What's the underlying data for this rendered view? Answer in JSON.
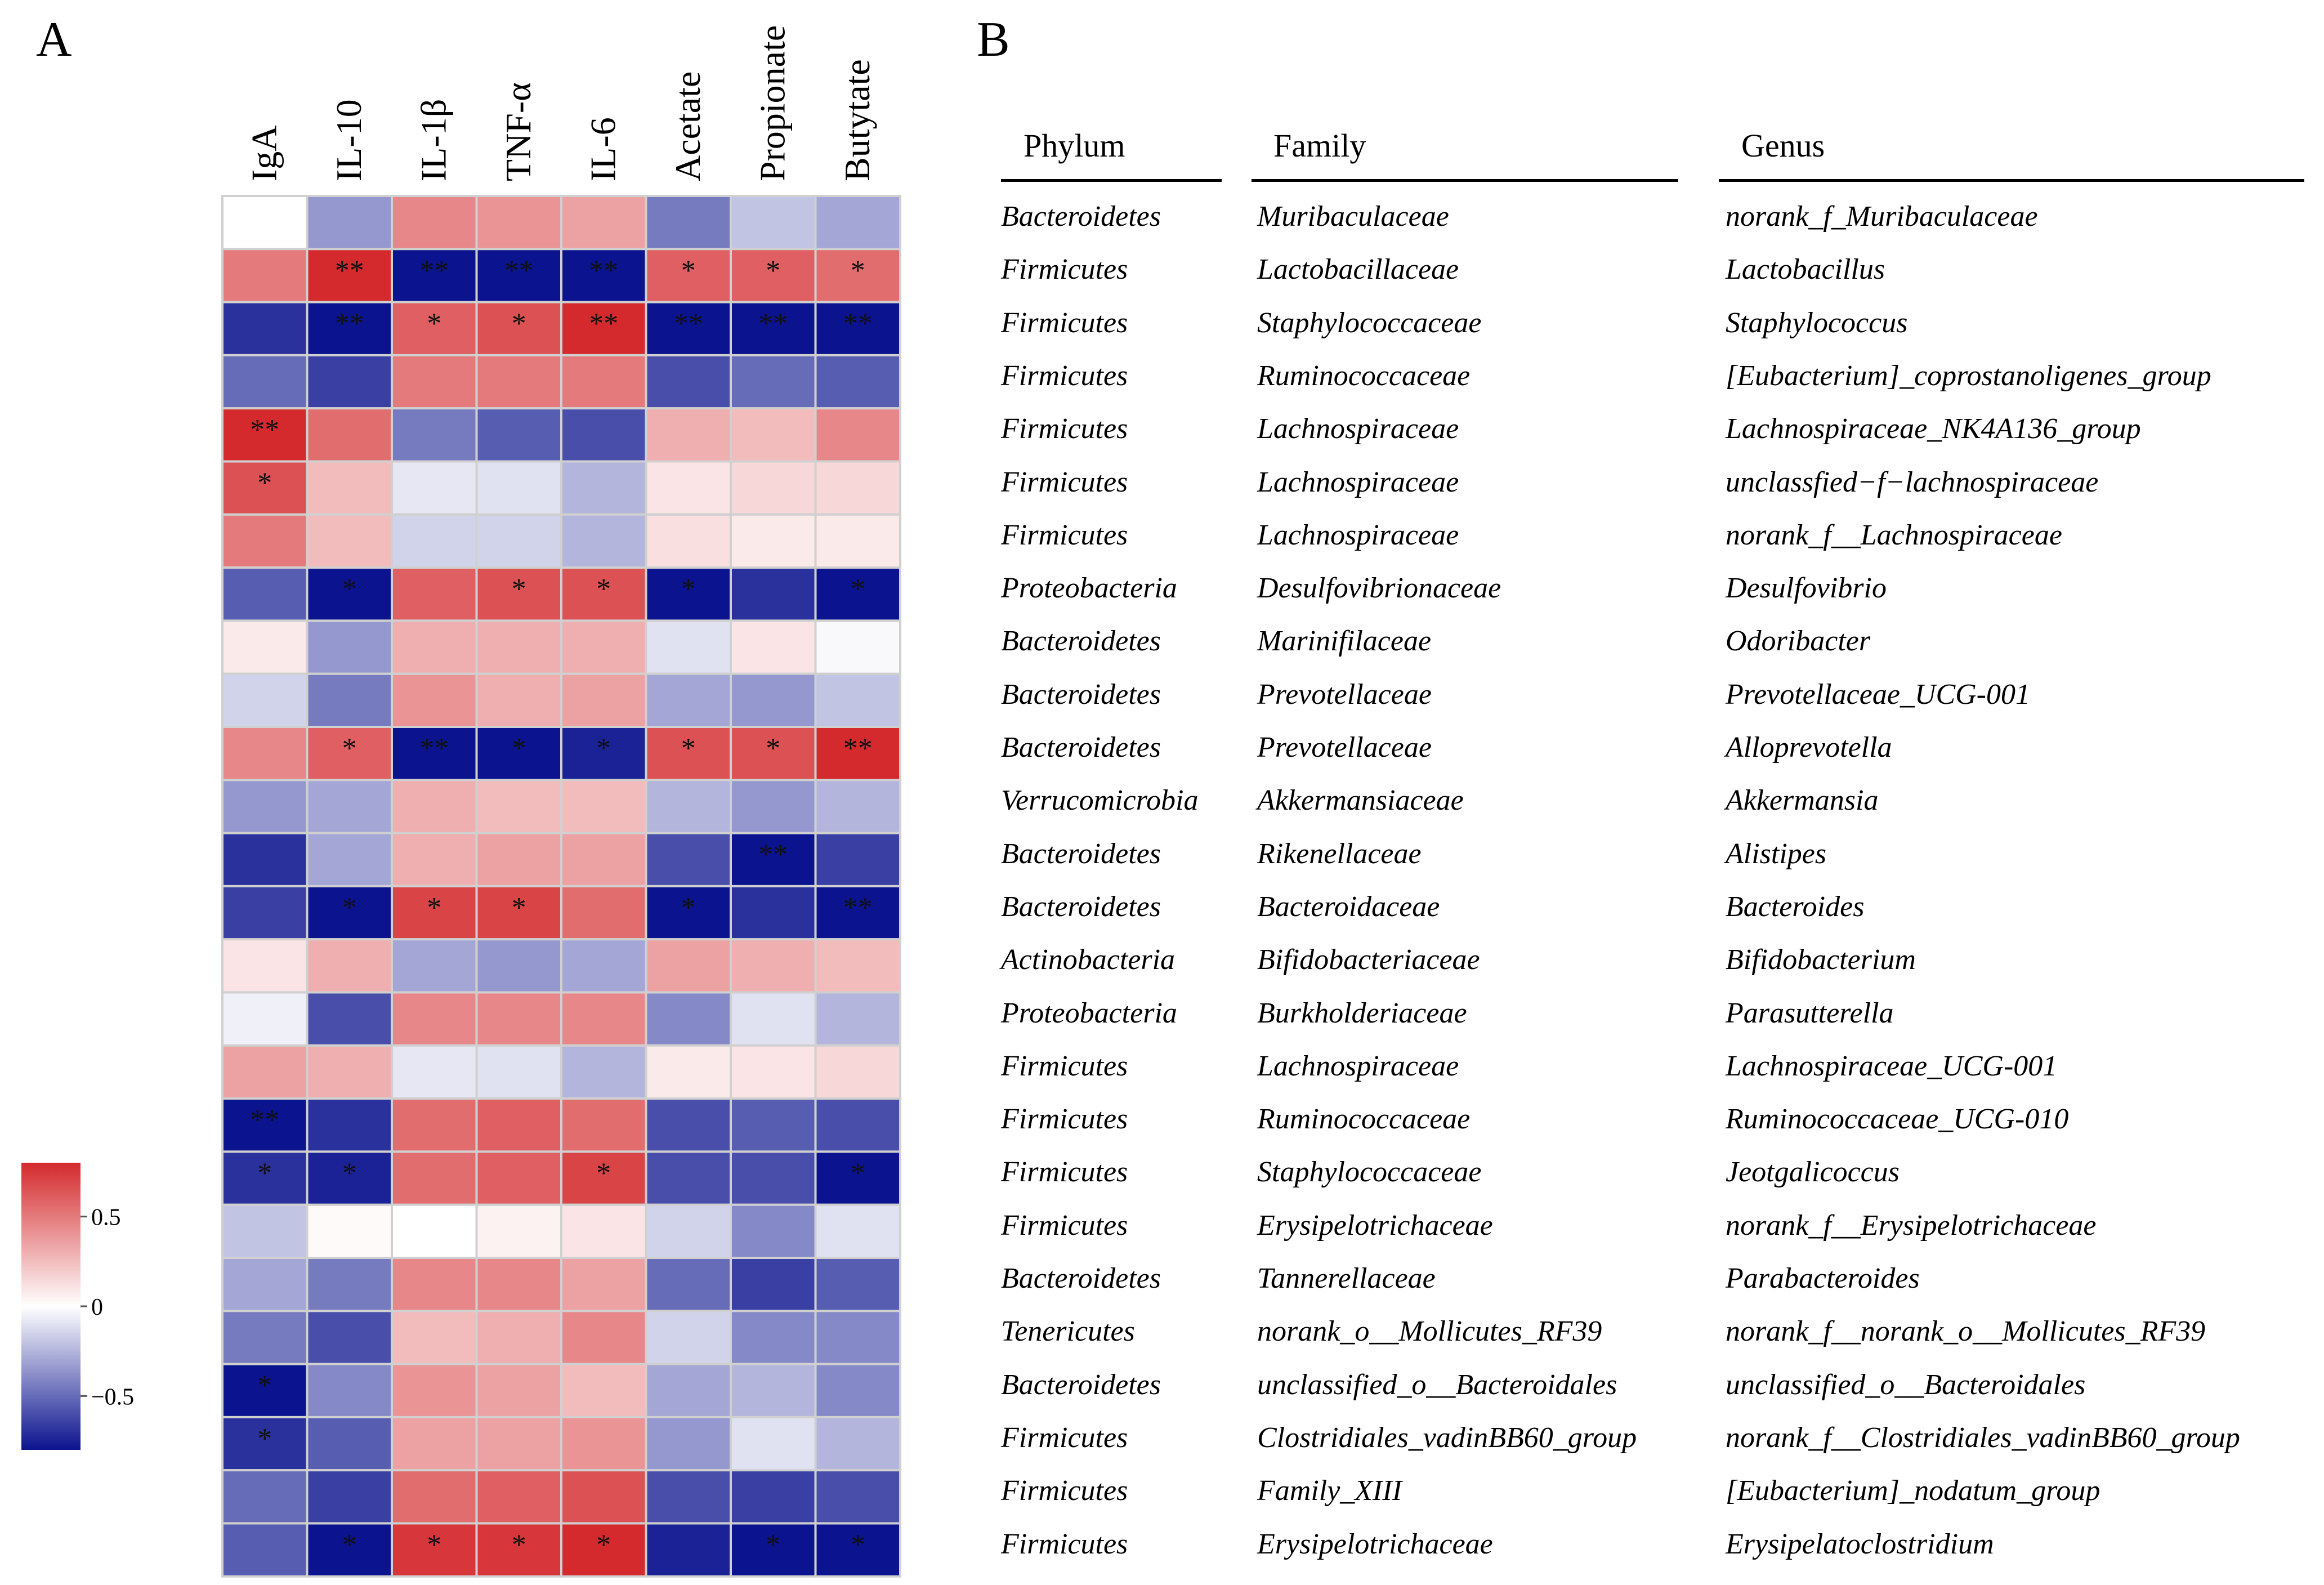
{
  "panel_labels": {
    "a": "A",
    "b": "B"
  },
  "chart_data": {
    "type": "heatmap",
    "title": "",
    "columns": [
      "IgA",
      "IL-10",
      "IL-1β",
      "TNF-α",
      "IL-6",
      "Acetate",
      "Propionate",
      "Butytate"
    ],
    "values": [
      [
        0.0,
        -0.35,
        0.45,
        0.4,
        0.35,
        -0.45,
        -0.2,
        -0.3
      ],
      [
        0.5,
        0.85,
        -0.9,
        -0.9,
        -0.9,
        0.6,
        0.6,
        0.55
      ],
      [
        -0.7,
        -0.9,
        0.6,
        0.65,
        0.85,
        -0.9,
        -0.9,
        -0.9
      ],
      [
        -0.5,
        -0.65,
        0.5,
        0.5,
        0.5,
        -0.6,
        -0.5,
        -0.55
      ],
      [
        0.8,
        0.55,
        -0.45,
        -0.55,
        -0.6,
        0.3,
        0.25,
        0.45
      ],
      [
        0.65,
        0.25,
        -0.08,
        -0.1,
        -0.25,
        0.1,
        0.15,
        0.15
      ],
      [
        0.5,
        0.25,
        -0.15,
        -0.15,
        -0.25,
        0.12,
        0.08,
        0.08
      ],
      [
        -0.55,
        -0.8,
        0.6,
        0.65,
        0.65,
        -0.8,
        -0.7,
        -0.8
      ],
      [
        0.08,
        -0.35,
        0.3,
        0.3,
        0.3,
        -0.1,
        0.1,
        -0.02
      ],
      [
        -0.15,
        -0.45,
        0.4,
        0.3,
        0.35,
        -0.3,
        -0.35,
        -0.2
      ],
      [
        0.45,
        0.6,
        -0.9,
        -0.8,
        -0.75,
        0.65,
        0.65,
        0.8
      ],
      [
        -0.35,
        -0.3,
        0.3,
        0.25,
        0.25,
        -0.25,
        -0.35,
        -0.25
      ],
      [
        -0.7,
        -0.3,
        0.3,
        0.35,
        0.35,
        -0.6,
        -0.9,
        -0.65
      ],
      [
        -0.65,
        -0.8,
        0.7,
        0.7,
        0.55,
        -0.8,
        -0.7,
        -0.9
      ],
      [
        0.1,
        0.3,
        -0.3,
        -0.35,
        -0.3,
        0.35,
        0.3,
        0.25
      ],
      [
        -0.05,
        -0.6,
        0.45,
        0.45,
        0.45,
        -0.4,
        -0.1,
        -0.25
      ],
      [
        0.35,
        0.3,
        -0.08,
        -0.1,
        -0.25,
        0.08,
        0.1,
        0.15
      ],
      [
        -0.9,
        -0.7,
        0.55,
        0.6,
        0.55,
        -0.6,
        -0.55,
        -0.6
      ],
      [
        -0.7,
        -0.75,
        0.55,
        0.6,
        0.7,
        -0.6,
        -0.6,
        -0.8
      ],
      [
        -0.2,
        0.02,
        0.0,
        0.05,
        0.1,
        -0.15,
        -0.4,
        -0.1
      ],
      [
        -0.3,
        -0.45,
        0.45,
        0.45,
        0.35,
        -0.5,
        -0.65,
        -0.55
      ],
      [
        -0.45,
        -0.6,
        0.25,
        0.3,
        0.45,
        -0.15,
        -0.4,
        -0.4
      ],
      [
        -0.8,
        -0.4,
        0.4,
        0.35,
        0.25,
        -0.3,
        -0.25,
        -0.4
      ],
      [
        -0.7,
        -0.55,
        0.35,
        0.35,
        0.4,
        -0.35,
        -0.1,
        -0.25
      ],
      [
        -0.5,
        -0.65,
        0.55,
        0.6,
        0.65,
        -0.6,
        -0.65,
        -0.6
      ],
      [
        -0.55,
        -0.85,
        0.75,
        0.75,
        0.8,
        -0.75,
        -0.85,
        -0.85
      ]
    ],
    "significance": [
      [
        "",
        "",
        "",
        "",
        "",
        "",
        "",
        ""
      ],
      [
        "",
        "**",
        "**",
        "**",
        "**",
        "*",
        "*",
        "*"
      ],
      [
        "",
        "**",
        "*",
        "*",
        "**",
        "**",
        "**",
        "**"
      ],
      [
        "",
        "",
        "",
        "",
        "",
        "",
        "",
        ""
      ],
      [
        "**",
        "",
        "",
        "",
        "",
        "",
        "",
        ""
      ],
      [
        "*",
        "",
        "",
        "",
        "",
        "",
        "",
        ""
      ],
      [
        "",
        "",
        "",
        "",
        "",
        "",
        "",
        ""
      ],
      [
        "",
        "*",
        "",
        "*",
        "*",
        "*",
        "",
        "*"
      ],
      [
        "",
        "",
        "",
        "",
        "",
        "",
        "",
        ""
      ],
      [
        "",
        "",
        "",
        "",
        "",
        "",
        "",
        ""
      ],
      [
        "",
        "*",
        "**",
        "*",
        "*",
        "*",
        "*",
        "**"
      ],
      [
        "",
        "",
        "",
        "",
        "",
        "",
        "",
        ""
      ],
      [
        "",
        "",
        "",
        "",
        "",
        "",
        "**",
        ""
      ],
      [
        "",
        "*",
        "*",
        "*",
        "",
        "*",
        "",
        "**"
      ],
      [
        "",
        "",
        "",
        "",
        "",
        "",
        "",
        ""
      ],
      [
        "",
        "",
        "",
        "",
        "",
        "",
        "",
        ""
      ],
      [
        "",
        "",
        "",
        "",
        "",
        "",
        "",
        ""
      ],
      [
        "**",
        "",
        "",
        "",
        "",
        "",
        "",
        ""
      ],
      [
        "*",
        "*",
        "",
        "",
        "*",
        "",
        "",
        "*"
      ],
      [
        "",
        "",
        "",
        "",
        "",
        "",
        "",
        ""
      ],
      [
        "",
        "",
        "",
        "",
        "",
        "",
        "",
        ""
      ],
      [
        "",
        "",
        "",
        "",
        "",
        "",
        "",
        ""
      ],
      [
        "*",
        "",
        "",
        "",
        "",
        "",
        "",
        ""
      ],
      [
        "*",
        "",
        "",
        "",
        "",
        "",
        "",
        ""
      ],
      [
        "",
        "",
        "",
        "",
        "",
        "",
        "",
        ""
      ],
      [
        "",
        "*",
        "*",
        "*",
        "*",
        "",
        "*",
        "*"
      ]
    ],
    "colorbar": {
      "min": -0.8,
      "max": 0.8,
      "ticks": [
        0.5,
        0,
        -0.5
      ],
      "tick_labels": [
        "0.5",
        "0",
        "−0.5"
      ]
    },
    "colors": {
      "low": "#0b138e",
      "mid": "#ffffff",
      "high": "#d42a2d",
      "grid": "#d0d0d0"
    }
  },
  "taxonomy": {
    "headers": {
      "phylum": "Phylum",
      "family": "Family",
      "genus": "Genus"
    },
    "rows": [
      {
        "phylum": "Bacteroidetes",
        "family": "Muribaculaceae",
        "genus": "norank_f_Muribaculaceae"
      },
      {
        "phylum": "Firmicutes",
        "family": "Lactobacillaceae",
        "genus": "Lactobacillus"
      },
      {
        "phylum": "Firmicutes",
        "family": "Staphylococcaceae",
        "genus": "Staphylococcus"
      },
      {
        "phylum": "Firmicutes",
        "family": "Ruminococcaceae",
        "genus": "[Eubacterium]_coprostanoligenes_group"
      },
      {
        "phylum": "Firmicutes",
        "family": "Lachnospiraceae",
        "genus": "Lachnospiraceae_NK4A136_group"
      },
      {
        "phylum": "Firmicutes",
        "family": "Lachnospiraceae",
        "genus": "unclassfied−f−lachnospiraceae"
      },
      {
        "phylum": "Firmicutes",
        "family": "Lachnospiraceae",
        "genus": "norank_f__Lachnospiraceae"
      },
      {
        "phylum": "Proteobacteria",
        "family": "Desulfovibrionaceae",
        "genus": "Desulfovibrio"
      },
      {
        "phylum": "Bacteroidetes",
        "family": "Marinifilaceae",
        "genus": "Odoribacter"
      },
      {
        "phylum": "Bacteroidetes",
        "family": "Prevotellaceae",
        "genus": "Prevotellaceae_UCG-001"
      },
      {
        "phylum": "Bacteroidetes",
        "family": "Prevotellaceae",
        "genus": "Alloprevotella"
      },
      {
        "phylum": "Verrucomicrobia",
        "family": "Akkermansiaceae",
        "genus": "Akkermansia"
      },
      {
        "phylum": "Bacteroidetes",
        "family": "Rikenellaceae",
        "genus": "Alistipes"
      },
      {
        "phylum": "Bacteroidetes",
        "family": "Bacteroidaceae",
        "genus": "Bacteroides"
      },
      {
        "phylum": "Actinobacteria",
        "family": "Bifidobacteriaceae",
        "genus": "Bifidobacterium"
      },
      {
        "phylum": "Proteobacteria",
        "family": "Burkholderiaceae",
        "genus": "Parasutterella"
      },
      {
        "phylum": "Firmicutes",
        "family": "Lachnospiraceae",
        "genus": "Lachnospiraceae_UCG-001"
      },
      {
        "phylum": "Firmicutes",
        "family": "Ruminococcaceae",
        "genus": "Ruminococcaceae_UCG-010"
      },
      {
        "phylum": "Firmicutes",
        "family": "Staphylococcaceae",
        "genus": "Jeotgalicoccus"
      },
      {
        "phylum": "Firmicutes",
        "family": "Erysipelotrichaceae",
        "genus": "norank_f__Erysipelotrichaceae"
      },
      {
        "phylum": "Bacteroidetes",
        "family": "Tannerellaceae",
        "genus": "Parabacteroides"
      },
      {
        "phylum": "Tenericutes",
        "family": "norank_o__Mollicutes_RF39",
        "genus": "norank_f__norank_o__Mollicutes_RF39"
      },
      {
        "phylum": "Bacteroidetes",
        "family": "unclassified_o__Bacteroidales",
        "genus": "unclassified_o__Bacteroidales"
      },
      {
        "phylum": "Firmicutes",
        "family": "Clostridiales_vadinBB60_group",
        "genus": "norank_f__Clostridiales_vadinBB60_group"
      },
      {
        "phylum": "Firmicutes",
        "family": "Family_XIII",
        "genus": "[Eubacterium]_nodatum_group"
      },
      {
        "phylum": "Firmicutes",
        "family": "Erysipelotrichaceae",
        "genus": "Erysipelatoclostridium"
      }
    ]
  }
}
